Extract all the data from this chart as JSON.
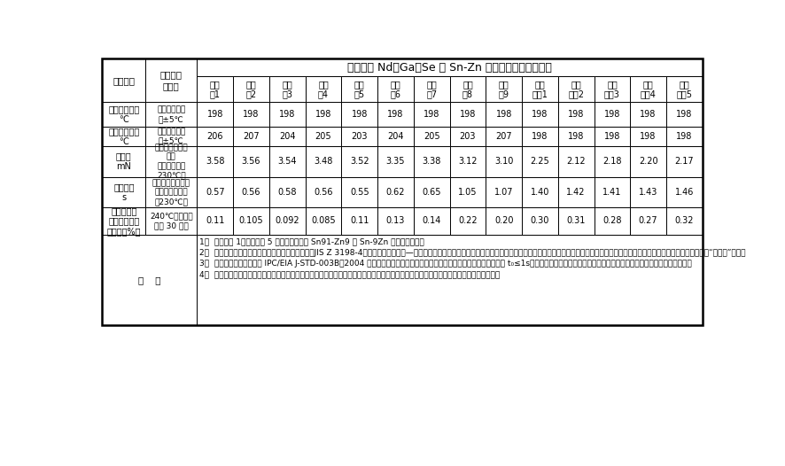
{
  "title": "新发明含 Nd、Ga、Se 的 Sn-Zn 无铅钎料性能测试结果",
  "col_labels": [
    "实施\n例1",
    "实施\n例2",
    "实施\n例3",
    "实施\n例4",
    "实施\n例5",
    "实施\n例6",
    "实施\n例7",
    "实施\n例8",
    "实施\n例9",
    "对比\n试样1",
    "对比\n试样2",
    "对比\n试样3",
    "对比\n试样4",
    "对比\n试样5"
  ],
  "row_item_labels": [
    "固相线温度，\n℃",
    "液相线温度，\n℃",
    "润湿力\nmN",
    "润湿时间\ns",
    "针料抗氧化\n能力（单位质\n量增重，%）"
  ],
  "row_cond_labels": [
    "设备试验误差\n为±5℃",
    "设备试验误差\n为±5℃",
    "在紫铜板上的润\n湿力\n（试验温度为\n230℃）",
    "在紫铜板上的润湿\n时间（试验温度\n为230℃）",
    "240℃恒温条下\n氧化 30 分钟"
  ],
  "data_rows": [
    [
      198,
      198,
      198,
      198,
      198,
      198,
      198,
      198,
      198,
      198,
      198,
      198,
      198,
      198
    ],
    [
      206,
      207,
      204,
      205,
      203,
      204,
      205,
      203,
      207,
      198,
      198,
      198,
      198,
      198
    ],
    [
      "3.58",
      "3.56",
      "3.54",
      "3.48",
      "3.52",
      "3.35",
      "3.38",
      "3.12",
      "3.10",
      "2.25",
      "2.12",
      "2.18",
      "2.20",
      "2.17"
    ],
    [
      "0.57",
      "0.56",
      "0.58",
      "0.56",
      "0.55",
      "0.62",
      "0.65",
      "1.05",
      "1.07",
      "1.40",
      "1.42",
      "1.41",
      "1.43",
      "1.46"
    ],
    [
      "0.11",
      "0.105",
      "0.092",
      "0.085",
      "0.11",
      "0.13",
      "0.14",
      "0.22",
      "0.20",
      "0.30",
      "0.31",
      "0.28",
      "0.27",
      "0.32"
    ]
  ],
  "note_label": "备    注",
  "notes": [
    "1）  对比试样 1～对比试样 5 均为质量百分数 Sn91-Zn9 的 Sn-9Zn 二元合金针料。",
    "2）  根据国际公认的软针料试验方法日本工业标准《JIS Z 3198-4，无铅针料试验方法—第四部分：基于润湿平衡及接触角法的润湿性试验方法》进行润湿力测定。电子行业内公认润湿力越大说明针料润湿性能越好，但是目前尚无“最低值”要求。",
    "3）  根据美国电子工业标准 IPC/EIA J-STD-003B：2004 标准，可用于波峰焊的软针料在基板材料上的润湿时间的推荐值为 t₀≤1s。电子行业内公认润湿时间越小（至少小于一秒钟）说明针料润湿性能越好。",
    "4）  针料抗氧化能力目前尚无公认的测试方法，但是业内人士公认在某一温度下、一定时间内单位质量增重越小，说明针料抗氧化能力越好。"
  ],
  "bg_color": "#ffffff",
  "border_color": "#000000",
  "font_size": 7,
  "title_font_size": 9
}
